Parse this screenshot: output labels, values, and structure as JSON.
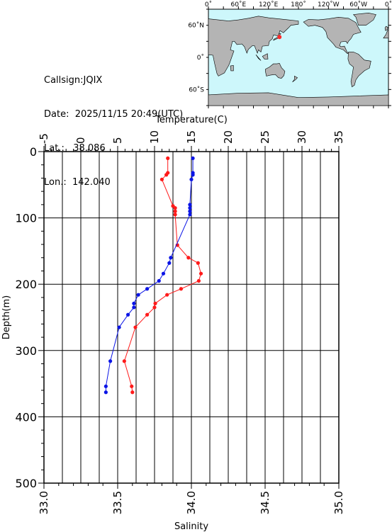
{
  "station": {
    "callsign_label": "Callsign:",
    "callsign": "JQIX",
    "date_label": "Date:",
    "date": "2025/11/15 20:49(UTC)",
    "lat_label": "Lat.:",
    "lat": "38.086",
    "lon_label": "Lon.:",
    "lon": "142.040"
  },
  "map": {
    "lon_labels": [
      "0˚",
      "60˚E",
      "120˚E",
      "180˚",
      "120˚W",
      "60˚W",
      "0˚"
    ],
    "lat_labels": [
      "60˚N",
      "0˚",
      "60˚S"
    ],
    "ocean_color": "#cdf7fb",
    "land_color": "#b4b4b4",
    "marker_color": "#ff2a2a",
    "marker_lon": 142.04,
    "marker_lat": 38.086
  },
  "chart_data": {
    "type": "line",
    "y_axis": {
      "label": "Depth(m)",
      "range": [
        0,
        500
      ],
      "inverted": true,
      "ticks": [
        0,
        100,
        200,
        300,
        400,
        500
      ]
    },
    "top_axis": {
      "label": "Temperature(C)",
      "range": [
        -5,
        35
      ],
      "ticks": [
        -5,
        0,
        5,
        10,
        15,
        20,
        25,
        30,
        35
      ]
    },
    "bottom_axis": {
      "label": "Salinity",
      "range": [
        33.0,
        35.0
      ],
      "ticks": [
        "33.0",
        "33.5",
        "34.0",
        "34.5",
        "35.0"
      ]
    },
    "grid": true,
    "series": [
      {
        "quantity": "temperature",
        "axis": "top",
        "color": "#ff1a1a",
        "points": [
          [
            11.8,
            10
          ],
          [
            11.8,
            32
          ],
          [
            11.6,
            35
          ],
          [
            11.0,
            42
          ],
          [
            12.5,
            82
          ],
          [
            12.8,
            85
          ],
          [
            12.8,
            90
          ],
          [
            12.8,
            95
          ],
          [
            13.1,
            141
          ],
          [
            14.6,
            160
          ],
          [
            15.9,
            168
          ],
          [
            16.3,
            184
          ],
          [
            16.0,
            195
          ],
          [
            13.6,
            207
          ],
          [
            11.7,
            216
          ],
          [
            10.1,
            229
          ],
          [
            10.0,
            235
          ],
          [
            9.0,
            246
          ],
          [
            7.4,
            265
          ],
          [
            5.9,
            316
          ],
          [
            6.9,
            354
          ],
          [
            7.0,
            363
          ]
        ]
      },
      {
        "quantity": "salinity",
        "axis": "bottom",
        "color": "#0a14e6",
        "points": [
          [
            34.01,
            10
          ],
          [
            34.01,
            32
          ],
          [
            34.01,
            35
          ],
          [
            34.0,
            42
          ],
          [
            33.99,
            80
          ],
          [
            33.99,
            85
          ],
          [
            33.99,
            90
          ],
          [
            33.99,
            95
          ],
          [
            33.86,
            160
          ],
          [
            33.85,
            168
          ],
          [
            33.81,
            184
          ],
          [
            33.78,
            195
          ],
          [
            33.7,
            207
          ],
          [
            33.64,
            216
          ],
          [
            33.61,
            229
          ],
          [
            33.61,
            235
          ],
          [
            33.57,
            246
          ],
          [
            33.51,
            265
          ],
          [
            33.45,
            316
          ],
          [
            33.42,
            354
          ],
          [
            33.42,
            363
          ]
        ]
      }
    ]
  }
}
